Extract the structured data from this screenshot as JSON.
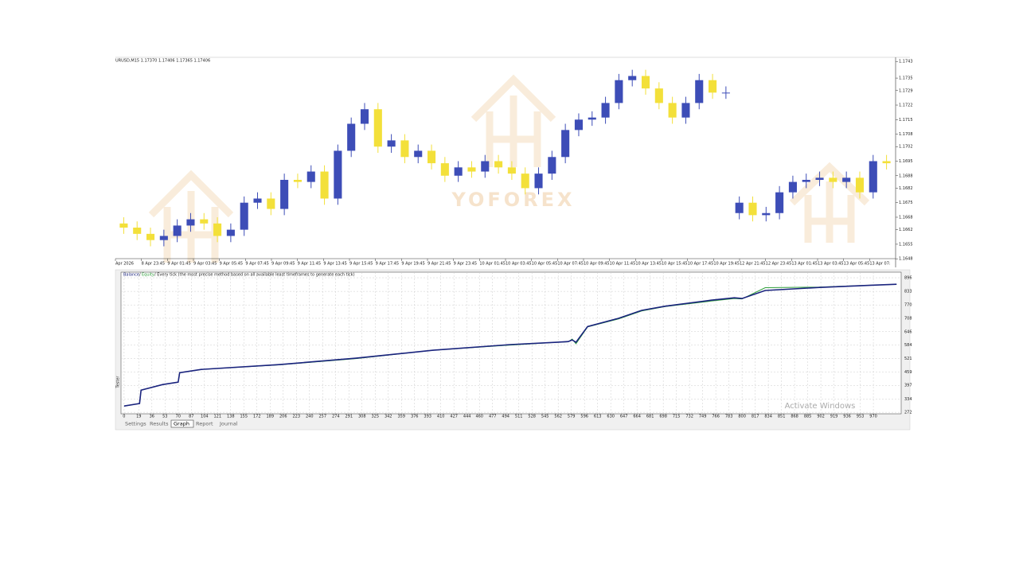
{
  "chart_data": [
    {
      "type": "candlestick",
      "title": "URUSD,M15  1.17370 1.17406 1.17365 1.17406",
      "watermark": "YOFOREX",
      "up_color": "#3d4db7",
      "down_color": "#f3e03a",
      "open": [
        1.1665,
        1.1663,
        1.166,
        1.1657,
        1.1659,
        1.1664,
        1.1667,
        1.1665,
        1.1659,
        1.1662,
        1.1675,
        1.1677,
        1.1672,
        1.1686,
        1.1685,
        1.169,
        1.1677,
        1.17,
        1.1713,
        1.172,
        1.1702,
        1.1705,
        1.1697,
        1.17,
        1.1694,
        1.1688,
        1.1692,
        1.169,
        1.1695,
        1.1692,
        1.1689,
        1.1682,
        1.1689,
        1.1697,
        1.171,
        1.1715,
        1.1716,
        1.1723,
        1.1734,
        1.1736,
        1.173,
        1.1723,
        1.1716,
        1.1723,
        1.1734,
        1.1728,
        1.167,
        1.1675,
        1.1669,
        1.167,
        1.168,
        1.1685,
        1.1686,
        1.1687,
        1.1685,
        1.1687,
        1.168,
        1.1695
      ],
      "high": [
        1.1668,
        1.1666,
        1.1663,
        1.1662,
        1.1667,
        1.167,
        1.167,
        1.1668,
        1.1665,
        1.1678,
        1.168,
        1.168,
        1.1689,
        1.1689,
        1.1693,
        1.1693,
        1.1703,
        1.1716,
        1.1723,
        1.1723,
        1.1708,
        1.1708,
        1.1703,
        1.1703,
        1.1697,
        1.1695,
        1.1695,
        1.1698,
        1.1698,
        1.1695,
        1.1692,
        1.1692,
        1.17,
        1.1713,
        1.1718,
        1.1719,
        1.1726,
        1.1737,
        1.1739,
        1.1739,
        1.1733,
        1.1726,
        1.1726,
        1.1737,
        1.1737,
        1.1731,
        1.1678,
        1.1678,
        1.1673,
        1.1683,
        1.1688,
        1.1689,
        1.169,
        1.169,
        1.169,
        1.169,
        1.1698,
        1.1698
      ],
      "low": [
        1.166,
        1.1657,
        1.1654,
        1.1654,
        1.1656,
        1.1661,
        1.1662,
        1.1656,
        1.1656,
        1.1659,
        1.1672,
        1.1669,
        1.1669,
        1.1682,
        1.1682,
        1.1674,
        1.1674,
        1.1697,
        1.171,
        1.1699,
        1.1699,
        1.1694,
        1.1694,
        1.1691,
        1.1685,
        1.1685,
        1.1687,
        1.1687,
        1.1689,
        1.1686,
        1.1679,
        1.1679,
        1.1686,
        1.1694,
        1.1707,
        1.1712,
        1.1713,
        1.172,
        1.1731,
        1.1727,
        1.172,
        1.1713,
        1.1713,
        1.172,
        1.1725,
        1.1725,
        1.1667,
        1.1666,
        1.1666,
        1.1667,
        1.1677,
        1.1682,
        1.1683,
        1.1682,
        1.1682,
        1.1677,
        1.1677,
        1.1691
      ],
      "close": [
        1.1663,
        1.166,
        1.1657,
        1.1659,
        1.1664,
        1.1667,
        1.1665,
        1.1659,
        1.1662,
        1.1675,
        1.1677,
        1.1672,
        1.1686,
        1.1685,
        1.169,
        1.1677,
        1.17,
        1.1713,
        1.172,
        1.1702,
        1.1705,
        1.1697,
        1.17,
        1.1694,
        1.1688,
        1.1692,
        1.169,
        1.1695,
        1.1692,
        1.1689,
        1.1682,
        1.1689,
        1.1697,
        1.171,
        1.1715,
        1.1716,
        1.1723,
        1.1734,
        1.1736,
        1.173,
        1.1723,
        1.1716,
        1.1723,
        1.1734,
        1.1728,
        1.1728,
        1.1675,
        1.1669,
        1.167,
        1.168,
        1.1685,
        1.1686,
        1.1687,
        1.1685,
        1.1687,
        1.168,
        1.1695,
        1.1694
      ],
      "ylim": [
        1.1645,
        1.1745
      ],
      "yticks": [
        1.1648,
        1.1655,
        1.1662,
        1.1668,
        1.1675,
        1.1682,
        1.1688,
        1.1695,
        1.1702,
        1.1708,
        1.1715,
        1.1722,
        1.1729,
        1.1735,
        1.1743
      ],
      "x_labels": [
        "Apr 2026",
        "8 Apr 23:45",
        "9 Apr 01:45",
        "9 Apr 03:45",
        "9 Apr 05:45",
        "9 Apr 07:45",
        "9 Apr 09:45",
        "9 Apr 11:45",
        "9 Apr 13:45",
        "9 Apr 15:45",
        "9 Apr 17:45",
        "9 Apr 19:45",
        "9 Apr 21:45",
        "9 Apr 23:45",
        "10 Apr 01:45",
        "10 Apr 03:45",
        "10 Apr 05:45",
        "10 Apr 07:45",
        "10 Apr 09:45",
        "10 Apr 11:45",
        "10 Apr 13:45",
        "10 Apr 15:45",
        "10 Apr 17:45",
        "10 Apr 19:45",
        "12 Apr 21:45",
        "12 Apr 23:45",
        "13 Apr 01:45",
        "13 Apr 03:45",
        "13 Apr 05:45",
        "13 Apr 07:"
      ]
    },
    {
      "type": "line",
      "subtitle": "/ Every tick (the most precise method based on all available least timeframes to generate each tick)",
      "legend_separator": "/",
      "x": [
        0,
        20,
        22,
        50,
        70,
        72,
        100,
        200,
        300,
        400,
        500,
        560,
        575,
        580,
        585,
        600,
        640,
        670,
        700,
        760,
        790,
        800,
        830,
        900,
        970,
        1000
      ],
      "series": [
        {
          "name": "Balance",
          "color": "#1a237e",
          "values": [
            301,
            313,
            375,
            401,
            412,
            456,
            471,
            493,
            523,
            560,
            586,
            597,
            600,
            608,
            597,
            670,
            708,
            745,
            764,
            792,
            803,
            800,
            837,
            851,
            862,
            866
          ]
        },
        {
          "name": "Equity",
          "color": "#2e9e3a",
          "values": [
            301,
            313,
            375,
            401,
            412,
            456,
            471,
            492,
            521,
            560,
            584,
            597,
            599,
            612,
            590,
            668,
            705,
            742,
            762,
            788,
            800,
            798,
            850,
            853,
            862,
            866
          ]
        }
      ],
      "xlim": [
        -4,
        1006
      ],
      "ylim": [
        265,
        922
      ],
      "xticks": [
        0,
        19,
        36,
        53,
        70,
        87,
        104,
        121,
        138,
        155,
        172,
        189,
        206,
        223,
        240,
        257,
        274,
        291,
        308,
        325,
        342,
        359,
        376,
        393,
        410,
        427,
        444,
        460,
        477,
        494,
        511,
        528,
        545,
        562,
        579,
        596,
        613,
        630,
        647,
        664,
        681,
        698,
        715,
        732,
        749,
        766,
        783,
        800,
        817,
        834,
        851,
        868,
        885,
        902,
        919,
        936,
        953,
        970
      ],
      "yticks": [
        272,
        334,
        397,
        459,
        521,
        584,
        646,
        708,
        770,
        833,
        896
      ],
      "grid": true
    }
  ],
  "side_label": "Tester",
  "tabs": [
    "Settings",
    "Results",
    "Graph",
    "Report",
    "Journal"
  ],
  "active_tab": 2,
  "os_watermark": "Activate Windows"
}
